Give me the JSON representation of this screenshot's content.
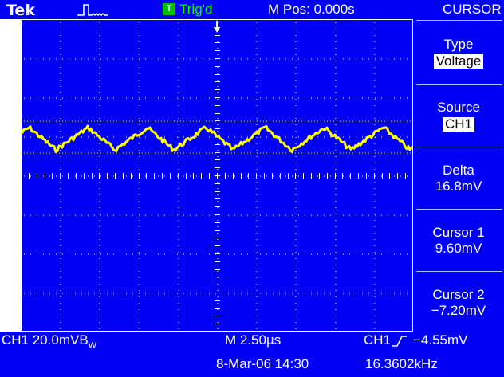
{
  "header": {
    "brand": "Tek",
    "acq_icon": "acquisition-pulse-icon",
    "trigger_badge": "T",
    "trigger_status": "Trig'd",
    "horizontal_position": "M Pos: 0.000s",
    "menu_title": "CURSOR"
  },
  "screen": {
    "channel_marker": "1▸",
    "trigger_marker_icon": "trigger-position-arrow-icon",
    "colors": {
      "background": "#0000f5",
      "trace": "#ffff00",
      "cursor": "#ffff00",
      "graticule": "#ffffff"
    }
  },
  "menu": {
    "type": {
      "label": "Type",
      "value": "Voltage"
    },
    "source": {
      "label": "Source",
      "value": "CH1"
    },
    "delta": {
      "label": "Delta",
      "value": "16.8mV"
    },
    "cursor1": {
      "label": "Cursor 1",
      "value": "9.60mV"
    },
    "cursor2": {
      "label": "Cursor 2",
      "value": "−7.20mV"
    }
  },
  "footer": {
    "ch1_scale": "CH1  20.0mV",
    "bw_limit": "B",
    "bw_sub": "W",
    "timebase": "M 2.50µs",
    "trigger_source": "CH1",
    "trigger_slope_icon": "rising-edge-icon",
    "trigger_level": "−4.55mV",
    "date_time": "8-Mar-06 14:30",
    "frequency": "16.3602kHz"
  }
}
